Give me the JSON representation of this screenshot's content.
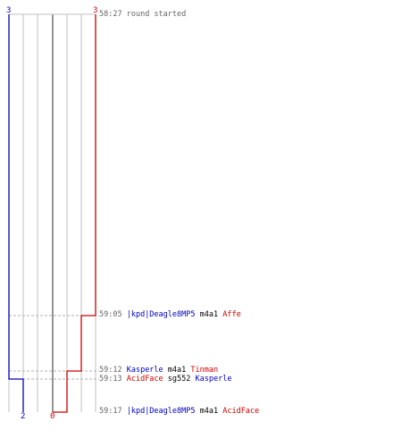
{
  "colors": {
    "team_blue": "#0000bb",
    "team_red": "#cc0000",
    "grid": "#c0c0c0",
    "center": "#707070",
    "time": "#666666"
  },
  "chart_data": {
    "type": "line",
    "xlabel": "",
    "ylabel": "",
    "series": [
      {
        "color": "#0000bb",
        "start_count": 3,
        "end_count": 2
      },
      {
        "color": "#cc0000",
        "start_count": 3,
        "end_count": 0
      }
    ],
    "count_range": [
      0,
      3
    ]
  },
  "labels": {
    "blue_start": "3",
    "red_start": "3",
    "blue_end": "2",
    "red_end": "0"
  },
  "events": [
    {
      "time": "58:27",
      "text": "round started"
    },
    {
      "time": "59:05",
      "killer": "|kpd|Deagle8MP5",
      "killer_team": "blue",
      "weapon": "m4a1",
      "victim": "Affe",
      "victim_team": "red"
    },
    {
      "time": "59:12",
      "killer": "Kasperle",
      "killer_team": "blue",
      "weapon": "m4a1",
      "victim": "Tinman",
      "victim_team": "red"
    },
    {
      "time": "59:13",
      "killer": "AcidFace",
      "killer_team": "red",
      "weapon": "sg552",
      "victim": "Kasperle",
      "victim_team": "blue"
    },
    {
      "time": "59:17",
      "killer": "|kpd|Deagle8MP5",
      "killer_team": "blue",
      "weapon": "m4a1",
      "victim": "AcidFace",
      "victim_team": "red"
    }
  ]
}
